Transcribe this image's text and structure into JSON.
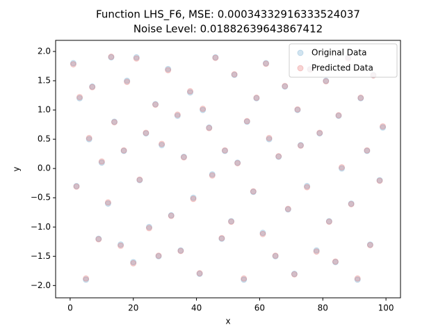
{
  "chart_data": {
    "type": "scatter",
    "title": "Function LHS_F6, MSE: 0.00034332916333524037",
    "subtitle": "Noise Level: 0.01882639643867412",
    "x_label": "x",
    "y_label": "y",
    "xlim": [
      -4.6,
      104.6
    ],
    "ylim": [
      -2.21,
      2.19
    ],
    "xticks": [
      0,
      20,
      40,
      60,
      80,
      100
    ],
    "yticks": [
      {
        "value": -2,
        "label": "−2.0"
      },
      {
        "value": -1.5,
        "label": "−1.5"
      },
      {
        "value": -1,
        "label": "−1.0"
      },
      {
        "value": -0.5,
        "label": "−0.5"
      },
      {
        "value": 0,
        "label": "0.0"
      },
      {
        "value": 0.5,
        "label": "0.5"
      },
      {
        "value": 1,
        "label": "1.0"
      },
      {
        "value": 1.5,
        "label": "1.5"
      },
      {
        "value": 2,
        "label": "2.0"
      }
    ],
    "legend": "upper right",
    "series": [
      {
        "name": "Original Data",
        "color": "#1f77b4",
        "x": [
          1,
          2,
          3,
          5,
          6,
          7,
          9,
          10,
          12,
          13,
          14,
          16,
          17,
          18,
          20,
          21,
          22,
          24,
          25,
          27,
          28,
          29,
          31,
          32,
          34,
          35,
          36,
          38,
          39,
          41,
          42,
          44,
          45,
          46,
          48,
          49,
          51,
          52,
          53,
          55,
          56,
          58,
          59,
          61,
          62,
          63,
          65,
          66,
          68,
          69,
          71,
          72,
          73,
          75,
          76,
          78,
          79,
          81,
          82,
          84,
          85,
          86,
          88,
          89,
          91,
          92,
          94,
          95,
          96,
          98,
          99
        ],
        "values": [
          1.8,
          -0.3,
          1.2,
          -1.9,
          0.5,
          1.4,
          -1.2,
          0.1,
          -0.6,
          1.9,
          0.8,
          -1.3,
          0.3,
          1.5,
          -1.6,
          1.9,
          -0.2,
          0.6,
          -1.0,
          1.1,
          -1.5,
          0.4,
          1.7,
          -0.8,
          0.9,
          -1.4,
          0.2,
          1.3,
          -0.5,
          -1.8,
          1.0,
          0.7,
          -0.1,
          1.9,
          -1.2,
          0.3,
          -0.9,
          1.6,
          0.1,
          -1.9,
          0.8,
          -0.4,
          1.2,
          -1.1,
          1.8,
          0.5,
          -1.5,
          0.2,
          1.4,
          -0.7,
          -1.8,
          1.0,
          0.4,
          -0.3,
          1.7,
          -1.4,
          0.6,
          1.5,
          -0.9,
          -1.6,
          0.9,
          0.0,
          1.9,
          -0.6,
          -1.9,
          1.2,
          0.3,
          -1.3,
          1.6,
          -0.2,
          0.7
        ]
      },
      {
        "name": "Predicted Data",
        "color": "#d62728",
        "x": [
          1,
          2,
          3,
          5,
          6,
          7,
          9,
          10,
          12,
          13,
          14,
          16,
          17,
          18,
          20,
          21,
          22,
          24,
          25,
          27,
          28,
          29,
          31,
          32,
          34,
          35,
          36,
          38,
          39,
          41,
          42,
          44,
          45,
          46,
          48,
          49,
          51,
          52,
          53,
          55,
          56,
          58,
          59,
          61,
          62,
          63,
          65,
          66,
          68,
          69,
          71,
          72,
          73,
          75,
          76,
          78,
          79,
          81,
          82,
          84,
          85,
          86,
          88,
          89,
          91,
          92,
          94,
          95,
          96,
          98,
          99
        ],
        "values": [
          1.78,
          -0.31,
          1.22,
          -1.88,
          0.52,
          1.39,
          -1.21,
          0.12,
          -0.58,
          1.91,
          0.79,
          -1.32,
          0.31,
          1.48,
          -1.62,
          1.88,
          -0.19,
          0.61,
          -1.02,
          1.09,
          -1.49,
          0.42,
          1.68,
          -0.81,
          0.92,
          -1.41,
          0.19,
          1.32,
          -0.52,
          -1.79,
          1.02,
          0.69,
          -0.12,
          1.89,
          -1.19,
          0.31,
          -0.91,
          1.61,
          0.09,
          -1.88,
          0.81,
          -0.39,
          1.21,
          -1.12,
          1.79,
          0.52,
          -1.49,
          0.21,
          1.41,
          -0.69,
          -1.81,
          1.01,
          0.39,
          -0.32,
          1.69,
          -1.42,
          0.61,
          1.49,
          -0.91,
          -1.59,
          0.91,
          0.02,
          1.88,
          -0.61,
          -1.88,
          1.21,
          0.31,
          -1.31,
          1.59,
          -0.21,
          0.72
        ]
      }
    ]
  }
}
